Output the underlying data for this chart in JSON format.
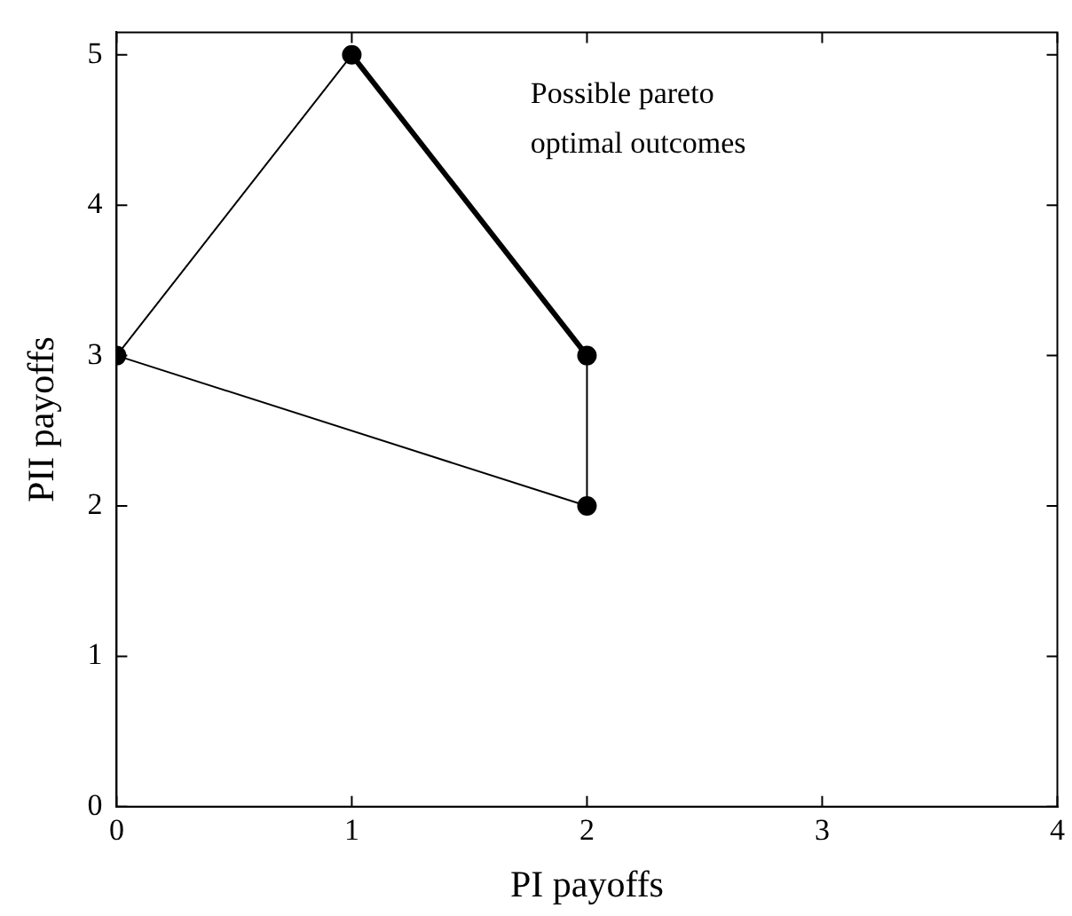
{
  "chart_data": {
    "type": "line",
    "xlabel": "PI payoffs",
    "ylabel": "PII payoffs",
    "xlim": [
      0,
      4
    ],
    "xticks": [
      0,
      1,
      2,
      3,
      4
    ],
    "ylim": [
      0,
      5.15
    ],
    "yticks": [
      0,
      1,
      2,
      3,
      4,
      5
    ],
    "grid": false,
    "legend": false,
    "marker": "circle",
    "line_style": "solid",
    "series": [
      {
        "color": "#000000",
        "x": [
          1,
          0,
          2,
          2
        ],
        "values": [
          5,
          3,
          2,
          3
        ]
      },
      {
        "color": "#000000",
        "x": [
          1,
          2
        ],
        "values": [
          5,
          3
        ],
        "marker": "none"
      }
    ],
    "annotations": [
      "Possible pareto optimal outcomes"
    ]
  }
}
